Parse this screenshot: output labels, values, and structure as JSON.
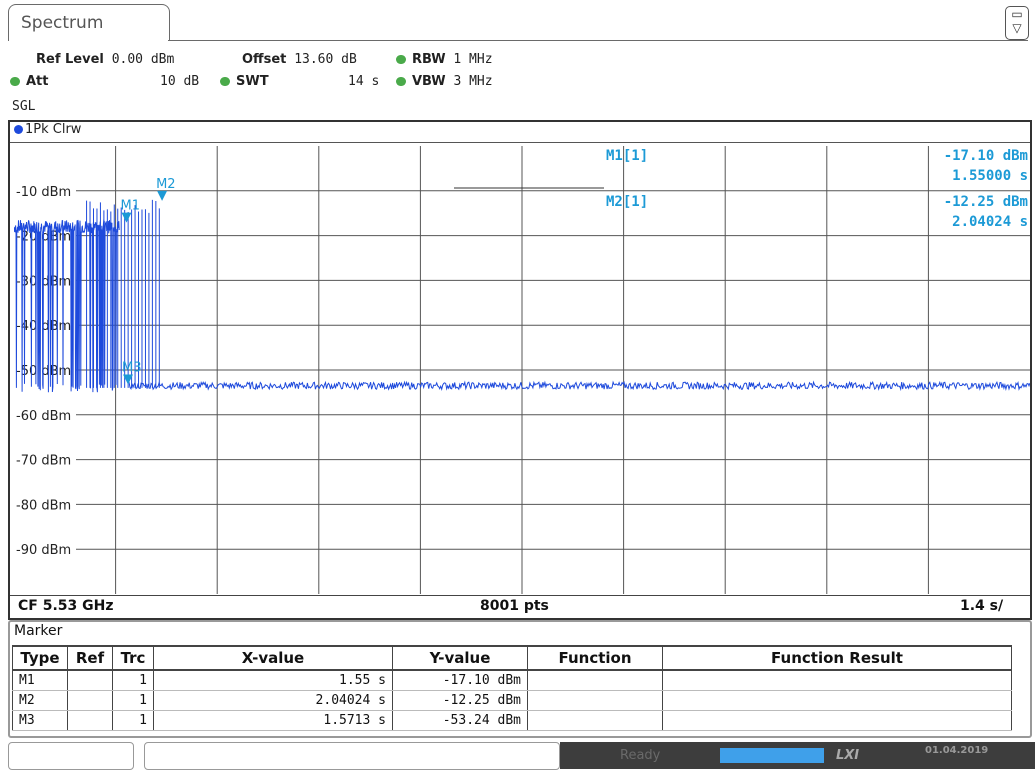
{
  "tab": {
    "title": "Spectrum"
  },
  "header": {
    "ref_level_label": "Ref Level",
    "ref_level_value": "0.00 dBm",
    "offset_label": "Offset",
    "offset_value": "13.60 dB",
    "rbw_label": "RBW",
    "rbw_value": "1 MHz",
    "att_label": "Att",
    "att_value": "10 dB",
    "swt_label": "SWT",
    "swt_value": "14 s",
    "vbw_label": "VBW",
    "vbw_value": "3 MHz",
    "mode": "SGL"
  },
  "trace": {
    "label": "1Pk Clrw"
  },
  "chart_data": {
    "type": "line",
    "y_unit": "dBm",
    "ylim": [
      -100,
      0
    ],
    "ytick_labels": [
      "-10 dBm",
      "-20 dBm",
      "-30 dBm",
      "-40 dBm",
      "-50 dBm",
      "-60 dBm",
      "-70 dBm",
      "-80 dBm",
      "-90 dBm"
    ],
    "x_divisions": 10,
    "y_divisions": 10,
    "grid": true,
    "trace_color": "#1e4adc",
    "series": [
      {
        "x": [
          0,
          1.45,
          1.55,
          1.5713,
          14
        ],
        "y": [
          -18,
          -18,
          -17.1,
          -53.24,
          -53.5
        ]
      }
    ],
    "markers": [
      {
        "name": "M1",
        "x": 1.55,
        "y": -17.1
      },
      {
        "name": "M2",
        "x": 2.04024,
        "y": -12.25
      },
      {
        "name": "M3",
        "x": 1.5713,
        "y": -53.24
      }
    ],
    "marker_readout": [
      {
        "name": "M1[1]",
        "y": "-17.10 dBm",
        "x": "1.55000 s"
      },
      {
        "name": "M2[1]",
        "y": "-12.25 dBm",
        "x": "2.04024 s"
      }
    ]
  },
  "footer": {
    "cf": "CF 5.53 GHz",
    "pts": "8001 pts",
    "span": "1.4 s/"
  },
  "marker_table": {
    "title": "Marker",
    "headers": [
      "Type",
      "Ref",
      "Trc",
      "X-value",
      "Y-value",
      "Function",
      "Function Result"
    ],
    "rows": [
      {
        "type": "M1",
        "ref": "",
        "trc": "1",
        "x": "1.55 s",
        "y": "-17.10 dBm",
        "func": "",
        "result": ""
      },
      {
        "type": "M2",
        "ref": "",
        "trc": "1",
        "x": "2.04024 s",
        "y": "-12.25 dBm",
        "func": "",
        "result": ""
      },
      {
        "type": "M3",
        "ref": "",
        "trc": "1",
        "x": "1.5713 s",
        "y": "-53.24 dBm",
        "func": "",
        "result": ""
      }
    ]
  },
  "status": {
    "ready": "Ready",
    "date": "01.04.2019"
  }
}
